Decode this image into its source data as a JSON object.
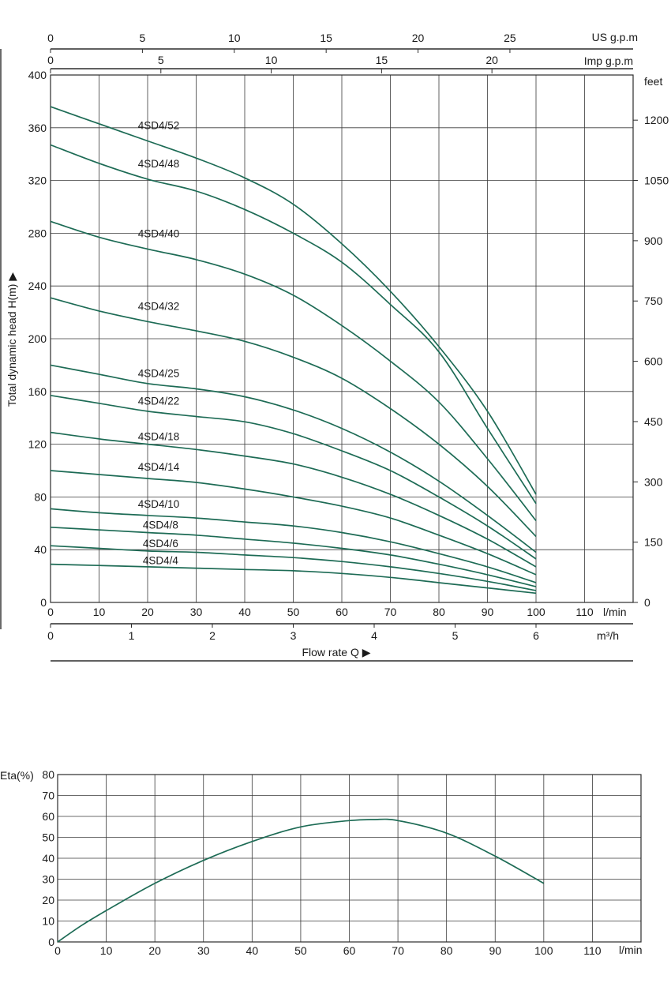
{
  "chart_data": [
    {
      "type": "line",
      "title": "",
      "xlabel": "Flow  rate Q ▶",
      "ylabel": "Total dynamic head H(m) ▶",
      "xlim": [
        0,
        120
      ],
      "ylim": [
        0,
        400
      ],
      "grid": true,
      "x_ticks": [
        0,
        10,
        20,
        30,
        40,
        50,
        60,
        70,
        80,
        90,
        100,
        110
      ],
      "x_unit": "l/min",
      "y_ticks": [
        0,
        40,
        80,
        120,
        160,
        200,
        240,
        280,
        320,
        360,
        400
      ],
      "secondary_axes": {
        "us_gpm": {
          "unit": "US g.p.m",
          "ticks": [
            0,
            5,
            10,
            15,
            20,
            25
          ]
        },
        "imp_gpm": {
          "unit": "Imp g.p.m",
          "ticks": [
            0,
            5,
            10,
            15,
            20
          ]
        },
        "m3h": {
          "unit": "m³/h",
          "ticks": [
            0,
            1,
            2,
            3,
            4,
            5,
            6
          ]
        },
        "feet": {
          "unit": "feet",
          "ticks": [
            0,
            150,
            300,
            450,
            600,
            750,
            900,
            1050,
            1200
          ]
        }
      },
      "x": [
        0,
        10,
        20,
        30,
        40,
        50,
        60,
        70,
        80,
        90,
        100
      ],
      "series": [
        {
          "name": "4SD4/52",
          "label_at": [
            18,
            359
          ],
          "values": [
            376,
            363,
            350,
            337,
            322,
            302,
            272,
            236,
            194,
            145,
            82
          ]
        },
        {
          "name": "4SD4/48",
          "label_at": [
            18,
            330
          ],
          "values": [
            347,
            333,
            321,
            312,
            298,
            280,
            258,
            226,
            190,
            132,
            75
          ]
        },
        {
          "name": "4SD4/40",
          "label_at": [
            18,
            277
          ],
          "values": [
            289,
            277,
            268,
            260,
            249,
            233,
            210,
            183,
            152,
            109,
            62
          ]
        },
        {
          "name": "4SD4/32",
          "label_at": [
            18,
            222
          ],
          "values": [
            231,
            221,
            213,
            206,
            198,
            186,
            170,
            147,
            120,
            88,
            50
          ]
        },
        {
          "name": "4SD4/25",
          "label_at": [
            18,
            171
          ],
          "values": [
            180,
            173,
            166,
            162,
            156,
            146,
            132,
            114,
            92,
            66,
            38
          ]
        },
        {
          "name": "4SD4/22",
          "label_at": [
            18,
            150
          ],
          "values": [
            157,
            151,
            145,
            141,
            137,
            128,
            115,
            100,
            80,
            58,
            33
          ]
        },
        {
          "name": "4SD4/18",
          "label_at": [
            18,
            123
          ],
          "values": [
            129,
            124,
            120,
            116,
            111,
            105,
            95,
            82,
            66,
            48,
            27
          ]
        },
        {
          "name": "4SD4/14",
          "label_at": [
            18,
            100
          ],
          "values": [
            100,
            97,
            94,
            91,
            86,
            80,
            73,
            64,
            51,
            37,
            21
          ]
        },
        {
          "name": "4SD4/10",
          "label_at": [
            18,
            72
          ],
          "values": [
            71,
            68,
            66,
            64,
            61,
            58,
            53,
            46,
            37,
            27,
            15
          ]
        },
        {
          "name": "4SD4/8",
          "label_at": [
            19,
            56
          ],
          "values": [
            57,
            55,
            53,
            51,
            48,
            45,
            41,
            36,
            29,
            21,
            12
          ]
        },
        {
          "name": "4SD4/6",
          "label_at": [
            19,
            42
          ],
          "values": [
            43,
            41,
            39,
            38,
            36,
            34,
            31,
            27,
            22,
            16,
            9
          ]
        },
        {
          "name": "4SD4/4",
          "label_at": [
            19,
            29
          ],
          "values": [
            29,
            28,
            27,
            26,
            25,
            24,
            22,
            19,
            15,
            11,
            7
          ]
        }
      ],
      "color": "#1d6b55"
    },
    {
      "type": "line",
      "title": "",
      "ylabel": "Eta(%)",
      "xlim": [
        0,
        120
      ],
      "ylim": [
        0,
        80
      ],
      "grid": true,
      "x_ticks": [
        0,
        10,
        20,
        30,
        40,
        50,
        60,
        70,
        80,
        90,
        100,
        110
      ],
      "x_unit": "l/min",
      "y_ticks": [
        0,
        10,
        20,
        30,
        40,
        50,
        60,
        70,
        80
      ],
      "x": [
        0,
        5,
        10,
        20,
        30,
        40,
        50,
        60,
        65,
        70,
        80,
        90,
        100
      ],
      "series": [
        {
          "values": [
            0,
            8,
            15,
            28,
            39,
            48,
            55,
            58,
            58.5,
            58,
            52,
            41,
            28
          ]
        }
      ],
      "color": "#1d6b55"
    }
  ]
}
